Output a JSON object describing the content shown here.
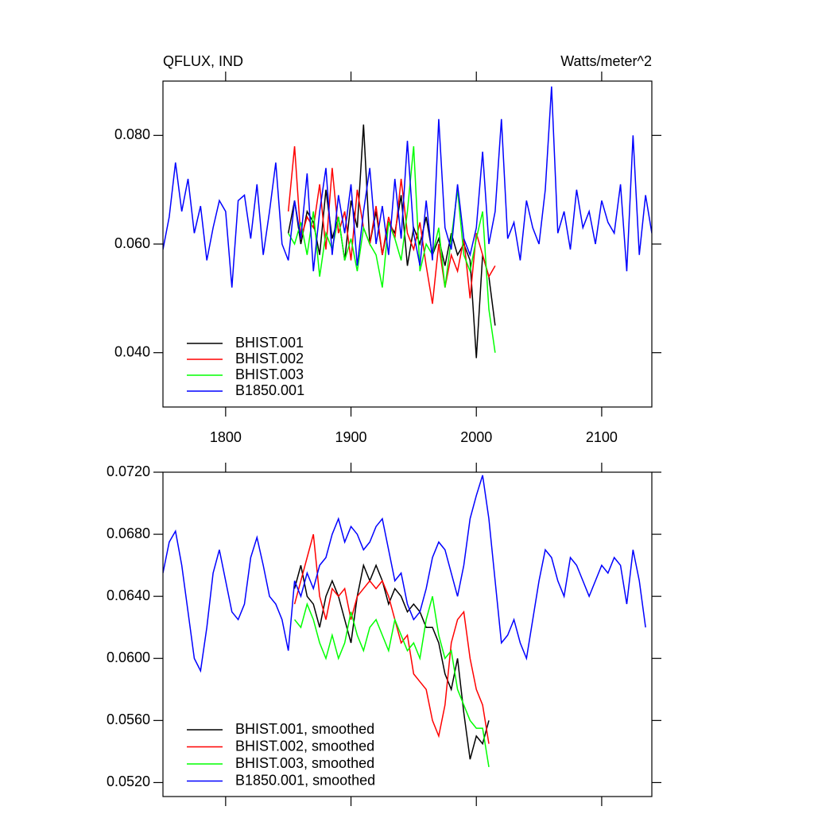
{
  "chart_data": [
    {
      "type": "line",
      "title": "QFLUX, IND",
      "units": "Watts/meter^2",
      "xlim": [
        1750,
        2140
      ],
      "xticks": [
        1800,
        1900,
        2000,
        2100
      ],
      "xtick_labels": true,
      "ylim": [
        0.03,
        0.09
      ],
      "yticks": [
        {
          "value": 0.04,
          "label": "0.040"
        },
        {
          "value": 0.06,
          "label": "0.060"
        },
        {
          "value": 0.08,
          "label": "0.080"
        }
      ],
      "legend": "lower left",
      "series": [
        {
          "name": "BHIST.001",
          "color": "#000000",
          "x": [
            1850,
            1855,
            1860,
            1865,
            1870,
            1875,
            1880,
            1885,
            1890,
            1895,
            1900,
            1905,
            1910,
            1915,
            1920,
            1925,
            1930,
            1935,
            1940,
            1945,
            1950,
            1955,
            1960,
            1965,
            1970,
            1975,
            1980,
            1985,
            1990,
            1995,
            2000,
            2005,
            2010,
            2015
          ],
          "values": [
            0.062,
            0.068,
            0.06,
            0.066,
            0.064,
            0.058,
            0.07,
            0.061,
            0.065,
            0.057,
            0.068,
            0.063,
            0.082,
            0.06,
            0.066,
            0.058,
            0.064,
            0.062,
            0.069,
            0.056,
            0.063,
            0.06,
            0.065,
            0.058,
            0.061,
            0.056,
            0.062,
            0.058,
            0.06,
            0.057,
            0.039,
            0.058,
            0.054,
            0.045
          ]
        },
        {
          "name": "BHIST.002",
          "color": "#ff0000",
          "x": [
            1850,
            1855,
            1860,
            1865,
            1870,
            1875,
            1880,
            1885,
            1890,
            1895,
            1900,
            1905,
            1910,
            1915,
            1920,
            1925,
            1930,
            1935,
            1940,
            1945,
            1950,
            1955,
            1960,
            1965,
            1970,
            1975,
            1980,
            1985,
            1990,
            1995,
            2000,
            2005,
            2010,
            2015
          ],
          "values": [
            0.066,
            0.078,
            0.061,
            0.065,
            0.063,
            0.071,
            0.059,
            0.074,
            0.062,
            0.066,
            0.057,
            0.07,
            0.063,
            0.06,
            0.067,
            0.058,
            0.065,
            0.061,
            0.072,
            0.062,
            0.059,
            0.064,
            0.056,
            0.049,
            0.06,
            0.052,
            0.058,
            0.055,
            0.061,
            0.05,
            0.062,
            0.058,
            0.054,
            0.056
          ]
        },
        {
          "name": "BHIST.003",
          "color": "#00ff00",
          "x": [
            1850,
            1855,
            1860,
            1865,
            1870,
            1875,
            1880,
            1885,
            1890,
            1895,
            1900,
            1905,
            1910,
            1915,
            1920,
            1925,
            1930,
            1935,
            1940,
            1945,
            1950,
            1955,
            1960,
            1965,
            1970,
            1975,
            1980,
            1985,
            1990,
            1995,
            2000,
            2005,
            2010,
            2015
          ],
          "values": [
            0.062,
            0.06,
            0.064,
            0.058,
            0.066,
            0.054,
            0.062,
            0.059,
            0.065,
            0.057,
            0.061,
            0.055,
            0.063,
            0.06,
            0.058,
            0.052,
            0.064,
            0.061,
            0.057,
            0.066,
            0.078,
            0.055,
            0.06,
            0.058,
            0.063,
            0.052,
            0.061,
            0.07,
            0.058,
            0.055,
            0.061,
            0.066,
            0.048,
            0.04
          ]
        },
        {
          "name": "B1850.001",
          "color": "#0000ff",
          "x": [
            1750,
            1755,
            1760,
            1765,
            1770,
            1775,
            1780,
            1785,
            1790,
            1795,
            1800,
            1805,
            1810,
            1815,
            1820,
            1825,
            1830,
            1835,
            1840,
            1845,
            1850,
            1855,
            1860,
            1865,
            1870,
            1875,
            1880,
            1885,
            1890,
            1895,
            1900,
            1905,
            1910,
            1915,
            1920,
            1925,
            1930,
            1935,
            1940,
            1945,
            1950,
            1955,
            1960,
            1965,
            1970,
            1975,
            1980,
            1985,
            1990,
            1995,
            2000,
            2005,
            2010,
            2015,
            2020,
            2025,
            2030,
            2035,
            2040,
            2045,
            2050,
            2055,
            2060,
            2065,
            2070,
            2075,
            2080,
            2085,
            2090,
            2095,
            2100,
            2105,
            2110,
            2115,
            2120,
            2125,
            2130,
            2135,
            2140
          ],
          "values": [
            0.059,
            0.065,
            0.075,
            0.066,
            0.072,
            0.062,
            0.067,
            0.057,
            0.063,
            0.068,
            0.066,
            0.052,
            0.068,
            0.069,
            0.061,
            0.071,
            0.058,
            0.066,
            0.075,
            0.06,
            0.057,
            0.068,
            0.061,
            0.073,
            0.055,
            0.066,
            0.074,
            0.058,
            0.069,
            0.062,
            0.071,
            0.056,
            0.066,
            0.074,
            0.06,
            0.067,
            0.058,
            0.072,
            0.061,
            0.079,
            0.062,
            0.056,
            0.068,
            0.057,
            0.083,
            0.063,
            0.059,
            0.071,
            0.061,
            0.058,
            0.063,
            0.077,
            0.06,
            0.066,
            0.083,
            0.061,
            0.064,
            0.057,
            0.068,
            0.063,
            0.06,
            0.07,
            0.089,
            0.062,
            0.066,
            0.059,
            0.07,
            0.063,
            0.066,
            0.06,
            0.068,
            0.064,
            0.062,
            0.071,
            0.055,
            0.08,
            0.058,
            0.069,
            0.062
          ]
        }
      ]
    },
    {
      "type": "line",
      "xlim": [
        1750,
        2140
      ],
      "xticks": [
        1800,
        1900,
        2000,
        2100
      ],
      "xtick_labels": false,
      "ylim": [
        0.0511,
        0.072
      ],
      "yticks": [
        {
          "value": 0.052,
          "label": "0.0520"
        },
        {
          "value": 0.056,
          "label": "0.0560"
        },
        {
          "value": 0.06,
          "label": "0.0600"
        },
        {
          "value": 0.064,
          "label": "0.0640"
        },
        {
          "value": 0.068,
          "label": "0.0680"
        },
        {
          "value": 0.072,
          "label": "0.0720"
        }
      ],
      "legend": "lower left",
      "series": [
        {
          "name": "BHIST.001, smoothed",
          "color": "#000000",
          "x": [
            1855,
            1860,
            1865,
            1870,
            1875,
            1880,
            1885,
            1890,
            1895,
            1900,
            1905,
            1910,
            1915,
            1920,
            1925,
            1930,
            1935,
            1940,
            1945,
            1950,
            1955,
            1960,
            1965,
            1970,
            1975,
            1980,
            1985,
            1990,
            1995,
            2000,
            2005,
            2010
          ],
          "values": [
            0.0645,
            0.066,
            0.064,
            0.0635,
            0.062,
            0.064,
            0.065,
            0.064,
            0.0625,
            0.061,
            0.064,
            0.066,
            0.065,
            0.066,
            0.065,
            0.0635,
            0.0645,
            0.064,
            0.063,
            0.0635,
            0.063,
            0.062,
            0.062,
            0.061,
            0.059,
            0.058,
            0.06,
            0.0565,
            0.0535,
            0.055,
            0.0545,
            0.056
          ]
        },
        {
          "name": "BHIST.002, smoothed",
          "color": "#ff0000",
          "x": [
            1855,
            1860,
            1865,
            1870,
            1875,
            1880,
            1885,
            1890,
            1895,
            1900,
            1905,
            1910,
            1915,
            1920,
            1925,
            1930,
            1935,
            1940,
            1945,
            1950,
            1955,
            1960,
            1965,
            1970,
            1975,
            1980,
            1985,
            1990,
            1995,
            2000,
            2005,
            2010
          ],
          "values": [
            0.0635,
            0.065,
            0.0665,
            0.068,
            0.064,
            0.0625,
            0.0645,
            0.064,
            0.0645,
            0.0625,
            0.064,
            0.0645,
            0.065,
            0.0645,
            0.065,
            0.064,
            0.0625,
            0.061,
            0.0615,
            0.059,
            0.0585,
            0.058,
            0.056,
            0.055,
            0.057,
            0.061,
            0.0625,
            0.063,
            0.06,
            0.058,
            0.057,
            0.0545
          ]
        },
        {
          "name": "BHIST.003, smoothed",
          "color": "#00ff00",
          "x": [
            1855,
            1860,
            1865,
            1870,
            1875,
            1880,
            1885,
            1890,
            1895,
            1900,
            1905,
            1910,
            1915,
            1920,
            1925,
            1930,
            1935,
            1940,
            1945,
            1950,
            1955,
            1960,
            1965,
            1970,
            1975,
            1980,
            1985,
            1990,
            1995,
            2000,
            2005,
            2010
          ],
          "values": [
            0.0625,
            0.062,
            0.0635,
            0.0625,
            0.061,
            0.06,
            0.0615,
            0.06,
            0.061,
            0.063,
            0.0615,
            0.0605,
            0.062,
            0.0625,
            0.0615,
            0.0605,
            0.0625,
            0.0615,
            0.0605,
            0.061,
            0.06,
            0.0625,
            0.064,
            0.0615,
            0.06,
            0.0605,
            0.058,
            0.057,
            0.056,
            0.0555,
            0.0555,
            0.053
          ]
        },
        {
          "name": "B1850.001, smoothed",
          "color": "#0000ff",
          "x": [
            1750,
            1755,
            1760,
            1765,
            1770,
            1775,
            1780,
            1785,
            1790,
            1795,
            1800,
            1805,
            1810,
            1815,
            1820,
            1825,
            1830,
            1835,
            1840,
            1845,
            1850,
            1855,
            1860,
            1865,
            1870,
            1875,
            1880,
            1885,
            1890,
            1895,
            1900,
            1905,
            1910,
            1915,
            1920,
            1925,
            1930,
            1935,
            1940,
            1945,
            1950,
            1955,
            1960,
            1965,
            1970,
            1975,
            1980,
            1985,
            1990,
            1995,
            2000,
            2005,
            2010,
            2015,
            2020,
            2025,
            2030,
            2035,
            2040,
            2045,
            2050,
            2055,
            2060,
            2065,
            2070,
            2075,
            2080,
            2085,
            2090,
            2095,
            2100,
            2105,
            2110,
            2115,
            2120,
            2125,
            2130,
            2135
          ],
          "values": [
            0.0655,
            0.0675,
            0.0682,
            0.066,
            0.063,
            0.06,
            0.0592,
            0.062,
            0.0655,
            0.067,
            0.065,
            0.063,
            0.0625,
            0.0635,
            0.0665,
            0.0678,
            0.066,
            0.064,
            0.0635,
            0.0625,
            0.0605,
            0.065,
            0.064,
            0.0655,
            0.0645,
            0.066,
            0.0665,
            0.068,
            0.069,
            0.0675,
            0.0685,
            0.068,
            0.067,
            0.0675,
            0.0685,
            0.069,
            0.067,
            0.065,
            0.0655,
            0.0635,
            0.0625,
            0.063,
            0.0645,
            0.0665,
            0.0675,
            0.067,
            0.0655,
            0.064,
            0.066,
            0.069,
            0.0705,
            0.0718,
            0.069,
            0.065,
            0.061,
            0.0615,
            0.0625,
            0.061,
            0.06,
            0.0625,
            0.065,
            0.067,
            0.0665,
            0.065,
            0.064,
            0.0665,
            0.066,
            0.065,
            0.064,
            0.065,
            0.066,
            0.0655,
            0.0665,
            0.066,
            0.0635,
            0.067,
            0.065,
            0.062
          ]
        }
      ]
    }
  ]
}
